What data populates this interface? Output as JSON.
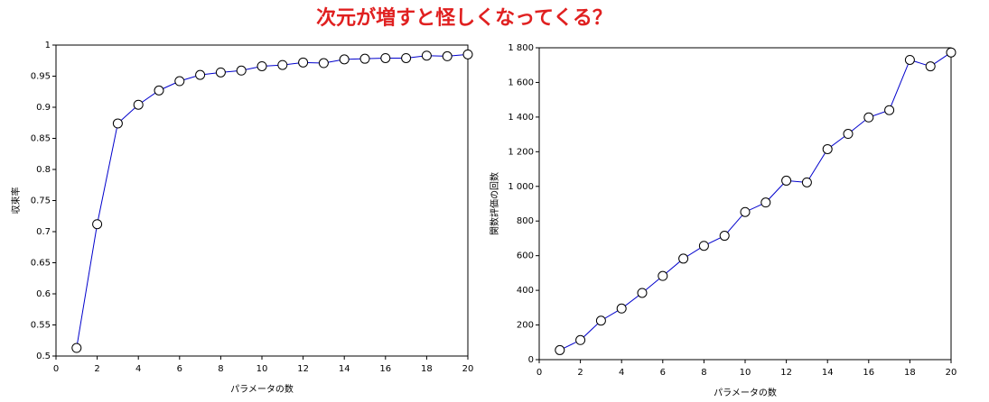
{
  "title": "次元が増すと怪しくなってくる？",
  "chart_data": [
    {
      "type": "line",
      "xlabel": "パラメータの数",
      "ylabel": "収束率",
      "x": [
        1,
        2,
        3,
        4,
        5,
        6,
        7,
        8,
        9,
        10,
        11,
        12,
        13,
        14,
        15,
        16,
        17,
        18,
        19,
        20
      ],
      "series": [
        {
          "color": "#0000cc",
          "values": [
            0.513,
            0.712,
            0.874,
            0.904,
            0.927,
            0.942,
            0.952,
            0.956,
            0.959,
            0.966,
            0.968,
            0.972,
            0.971,
            0.977,
            0.978,
            0.979,
            0.979,
            0.983,
            0.982,
            0.985
          ]
        }
      ],
      "xlim": [
        0,
        20
      ],
      "xticks": [
        0,
        2,
        4,
        6,
        8,
        10,
        12,
        14,
        16,
        18,
        20
      ],
      "ylim": [
        0.5,
        1
      ],
      "yticks": [
        0.5,
        0.55,
        0.6,
        0.65,
        0.7,
        0.75,
        0.8,
        0.85,
        0.9,
        0.95,
        1
      ]
    },
    {
      "type": "line",
      "xlabel": "パラメータの数",
      "ylabel": "関数評価の回数",
      "x": [
        1,
        2,
        3,
        4,
        5,
        6,
        7,
        8,
        9,
        10,
        11,
        12,
        13,
        14,
        15,
        16,
        17,
        18,
        19,
        20
      ],
      "series": [
        {
          "color": "#0000cc",
          "values": [
            55,
            113,
            225,
            295,
            385,
            483,
            583,
            657,
            715,
            852,
            907,
            1033,
            1023,
            1215,
            1303,
            1398,
            1440,
            1730,
            1693,
            1773
          ]
        }
      ],
      "xlim": [
        0,
        20
      ],
      "xticks": [
        0,
        2,
        4,
        6,
        8,
        10,
        12,
        14,
        16,
        18,
        20
      ],
      "ylim": [
        0,
        1800
      ],
      "yticks": [
        0,
        200,
        400,
        600,
        800,
        {
          "value": 1000,
          "label": "1 000"
        },
        {
          "value": 1200,
          "label": "1 200"
        },
        {
          "value": 1400,
          "label": "1 400"
        },
        {
          "value": 1600,
          "label": "1 600"
        },
        {
          "value": 1800,
          "label": "1 800"
        }
      ]
    }
  ]
}
